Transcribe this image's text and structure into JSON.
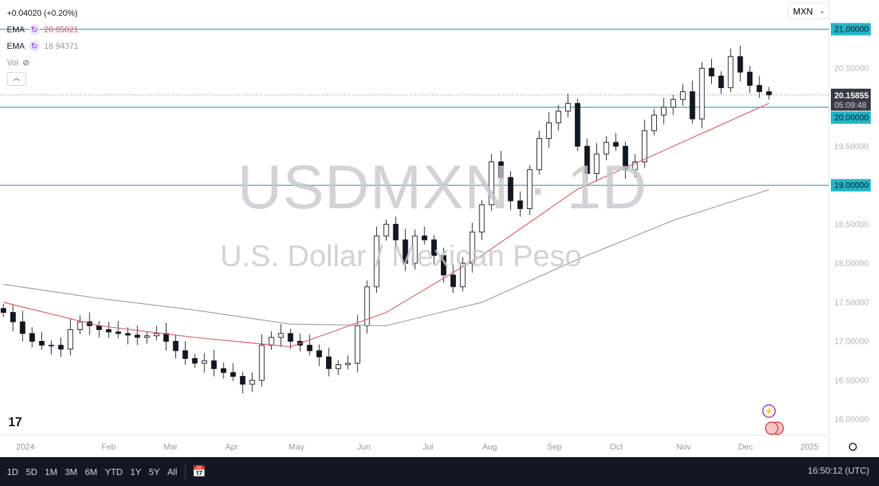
{
  "legend": {
    "change": "+0.04020 (+0.20%)",
    "ema1_label": "EMA",
    "ema1_value": "20.05021",
    "ema2_label": "EMA",
    "ema2_value": "18.94371",
    "vol_label": "Vol",
    "collapse_icon": "chevron-up-icon",
    "cycle_icon": "refresh-icon",
    "hidden_icon": "eye-off-icon"
  },
  "watermark": {
    "symbol": "USDMXN",
    "interval": "1D",
    "separator": "·",
    "description": "U.S. Dollar / Mexican Peso"
  },
  "currency_select": {
    "value": "MXN"
  },
  "price_box": {
    "price": "20.15855",
    "countdown": "05:09:48"
  },
  "colors": {
    "up": "#ffffff",
    "down": "#131722",
    "ema1": "#e05260",
    "ema2": "#9598a1",
    "hline": "#22a8b8",
    "hline_label_bg": "#22b6c8"
  },
  "bottom": {
    "ranges": [
      "1D",
      "5D",
      "1M",
      "3M",
      "6M",
      "YTD",
      "1Y",
      "5Y",
      "All"
    ],
    "clock": "16:50:12 (UTC)",
    "date_range_icon": "calendar-goto-icon"
  },
  "chart_data": {
    "type": "candlestick",
    "symbol": "USDMXN",
    "interval": "1D",
    "ylim": [
      15.85,
      21.35
    ],
    "yticks": [
      "21.00000",
      "20.50000",
      "20.00000",
      "19.50000",
      "19.00000",
      "18.50000",
      "18.00000",
      "17.50000",
      "17.00000",
      "16.50000",
      "16.00000"
    ],
    "ytick_values": [
      21,
      20.5,
      20,
      19.5,
      19,
      18.5,
      18,
      17.5,
      17,
      16.5,
      16
    ],
    "highlighted_levels": [
      21,
      20,
      19
    ],
    "last_price": 20.15855,
    "xticks": [
      "2024",
      "Feb",
      "Mar",
      "Apr",
      "May",
      "Jun",
      "Jul",
      "Aug",
      "Sep",
      "Oct",
      "Nov",
      "Dec",
      "2025"
    ],
    "closes": [
      17.37,
      17.25,
      17.1,
      17.0,
      16.95,
      16.95,
      16.9,
      17.15,
      17.25,
      17.2,
      17.15,
      17.12,
      17.1,
      17.08,
      17.05,
      17.07,
      17.1,
      17.0,
      16.88,
      16.78,
      16.72,
      16.75,
      16.65,
      16.6,
      16.55,
      16.45,
      16.5,
      16.95,
      17.05,
      17.1,
      17.0,
      16.95,
      16.88,
      16.8,
      16.65,
      16.7,
      16.72,
      17.2,
      17.7,
      18.35,
      18.5,
      18.3,
      18.0,
      18.35,
      18.3,
      18.1,
      17.85,
      17.7,
      18.0,
      18.4,
      18.75,
      19.3,
      19.1,
      18.8,
      18.7,
      19.2,
      19.6,
      19.8,
      19.95,
      20.05,
      19.5,
      19.15,
      19.4,
      19.55,
      19.5,
      19.2,
      19.3,
      19.7,
      19.9,
      20.0,
      20.1,
      20.2,
      19.85,
      20.5,
      20.4,
      20.25,
      20.65,
      20.45,
      20.28,
      20.2,
      20.15855
    ],
    "ema_fast": [
      17.5,
      17.2,
      17.05,
      16.93,
      17.37,
      18.1,
      18.95,
      19.5,
      20.05021
    ],
    "ema_slow": [
      17.73,
      17.55,
      17.4,
      17.22,
      17.2,
      17.5,
      18.05,
      18.55,
      18.94371
    ]
  }
}
